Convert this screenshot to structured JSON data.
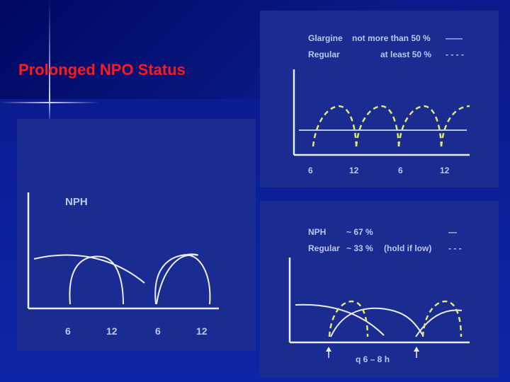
{
  "slide": {
    "title": "Prolonged NPO Status"
  },
  "panel_nph": {
    "label": "NPH",
    "ticks": [
      "6",
      "12",
      "6",
      "12"
    ]
  },
  "panel_glargine": {
    "legend": [
      {
        "name": "Glargine",
        "value": "not more than 50 %",
        "style": "——"
      },
      {
        "name": "Regular",
        "value": "at least 50 %",
        "style": "- - - -"
      }
    ],
    "ticks": [
      "6",
      "12",
      "6",
      "12"
    ]
  },
  "panel_nph_regular": {
    "legend": [
      {
        "name": "NPH",
        "value": "~ 67 %",
        "note": "",
        "style": "—"
      },
      {
        "name": "Regular",
        "value": "~ 33 %",
        "note": "(hold if low)",
        "style": "- - -"
      }
    ],
    "interval_label": "q 6 – 8 h"
  },
  "colors": {
    "title": "#ff1a1a",
    "panel": "#1a2c92",
    "solid_curve": "#e8eef8",
    "dashed_curve": "#e2e86a"
  }
}
